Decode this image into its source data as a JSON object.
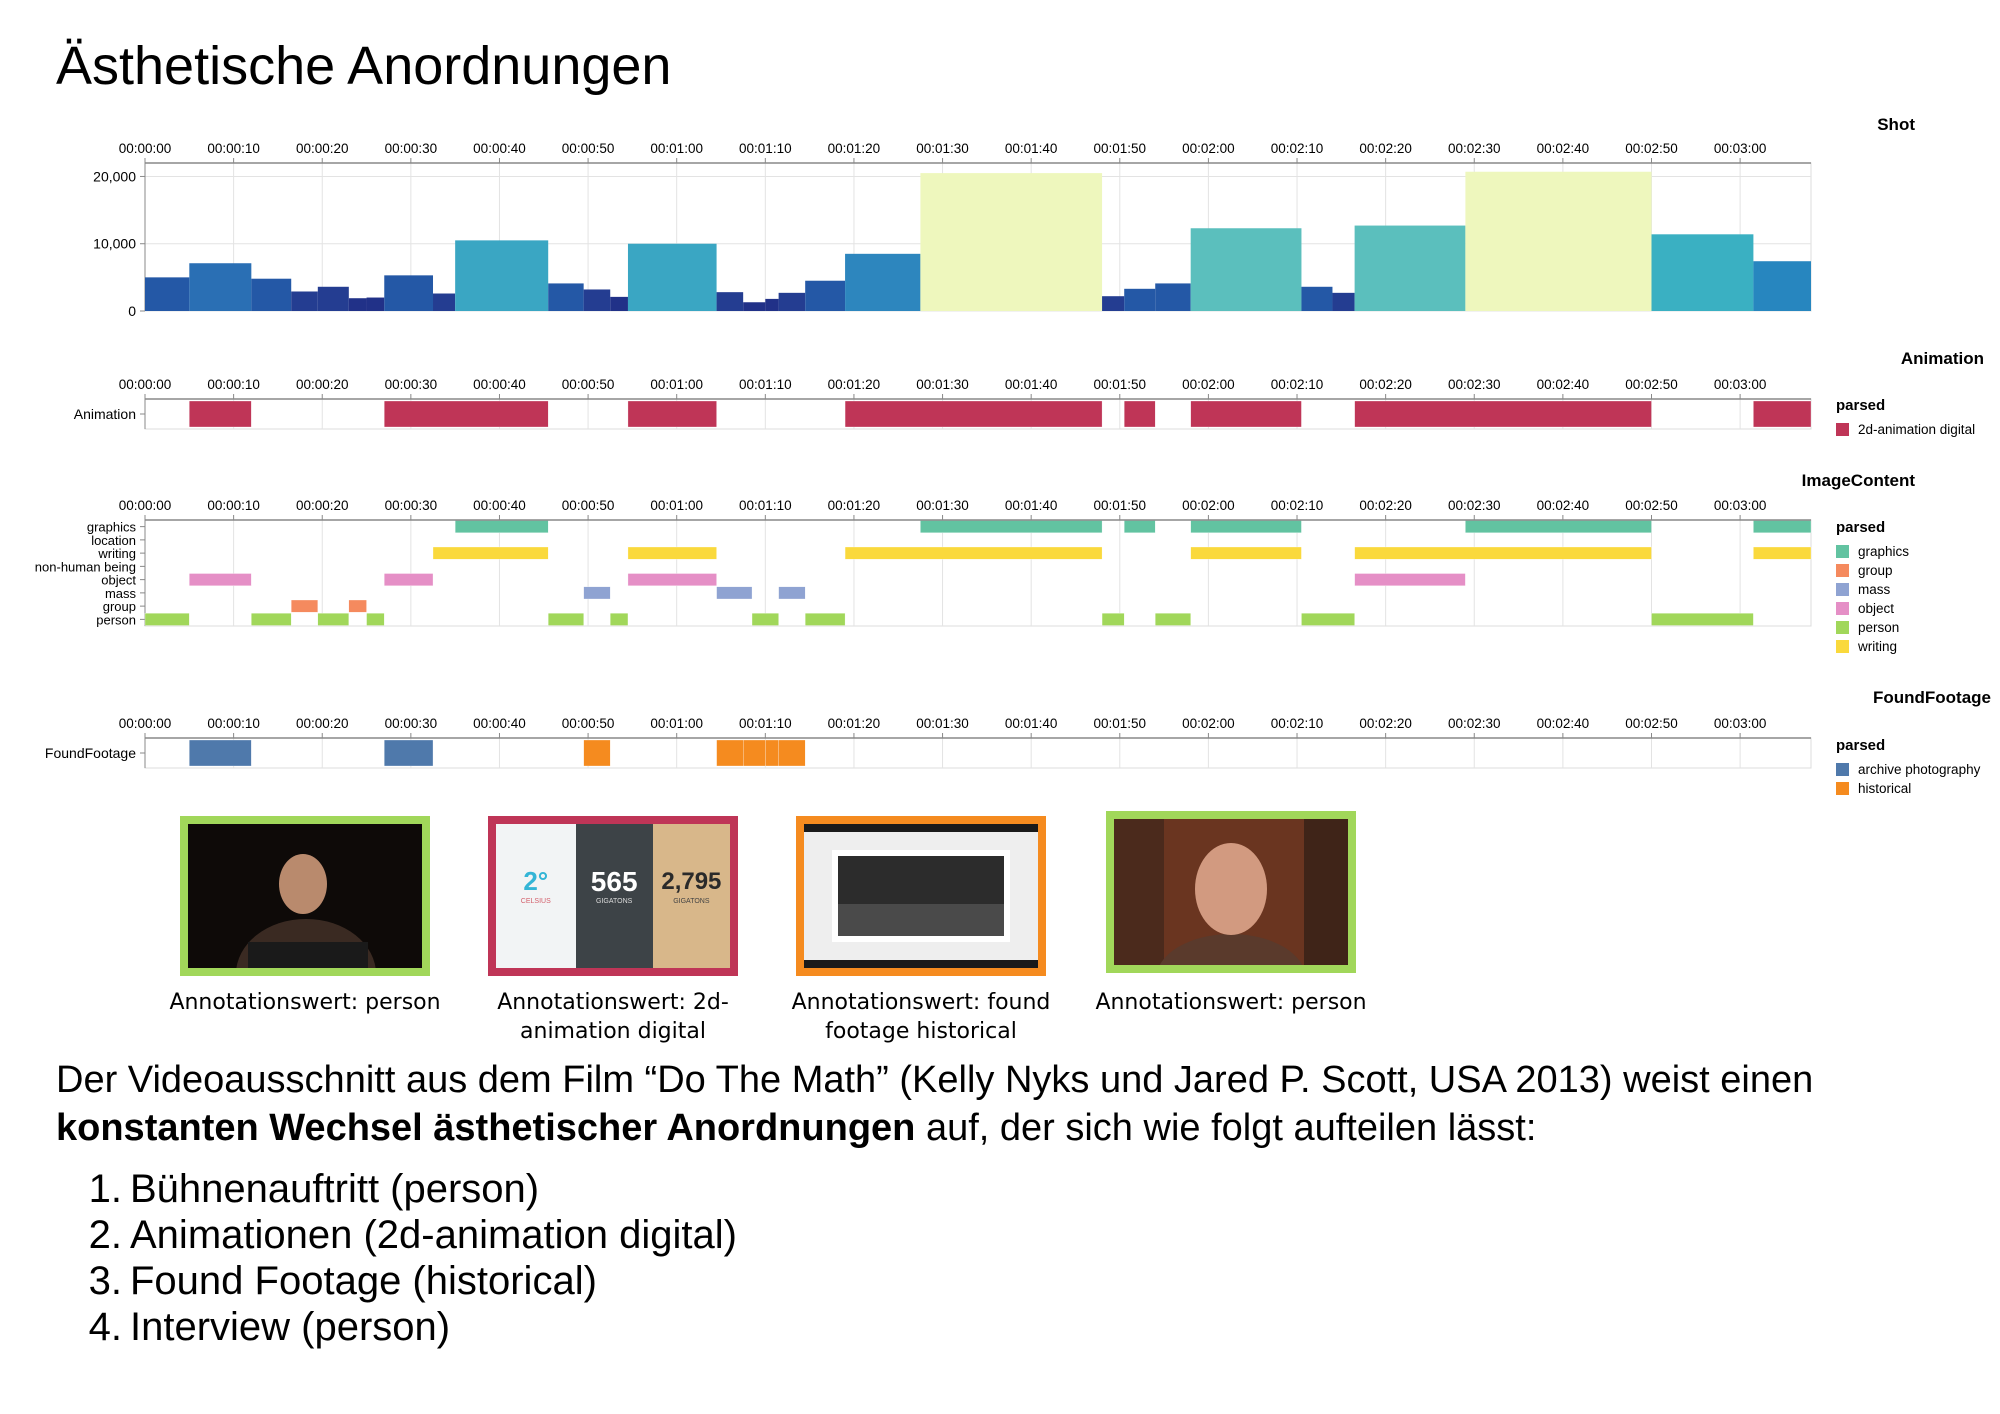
{
  "title": "Ästhetische Anordnungen",
  "colors": {
    "shot_light": "#eef7bd",
    "animation": "#bf3557",
    "graphics": "#62c3a1",
    "group": "#f58a5e",
    "mass": "#8fa3d2",
    "object": "#e58fc6",
    "person": "#a1d75a",
    "writing": "#fad93c",
    "archive": "#4f79ab",
    "historical": "#f58b1f"
  },
  "chart_data": [
    {
      "type": "bar",
      "title": "Shot",
      "x_unit": "seconds",
      "xlim": [
        0,
        188
      ],
      "ylim": [
        0,
        22000
      ],
      "y_ticks": [
        "0",
        "10,000",
        "20,000"
      ],
      "y_tick_values": [
        0,
        10000,
        20000
      ],
      "x_tick_labels": [
        "00:00:00",
        "00:00:10",
        "00:00:20",
        "00:00:30",
        "00:00:40",
        "00:00:50",
        "00:01:00",
        "00:01:10",
        "00:01:20",
        "00:01:30",
        "00:01:40",
        "00:01:50",
        "00:02:00",
        "00:02:10",
        "00:02:20",
        "00:02:30",
        "00:02:40",
        "00:02:50",
        "00:03:00"
      ],
      "x_tick_values": [
        0,
        10,
        20,
        30,
        40,
        50,
        60,
        70,
        80,
        90,
        100,
        110,
        120,
        130,
        140,
        150,
        160,
        170,
        180
      ],
      "shots": [
        {
          "start": 0,
          "end": 5,
          "value": 5000,
          "color": "#2458a6"
        },
        {
          "start": 5,
          "end": 12,
          "value": 7100,
          "color": "#2a6fb4"
        },
        {
          "start": 12,
          "end": 16.5,
          "value": 4800,
          "color": "#2458a6"
        },
        {
          "start": 16.5,
          "end": 19.5,
          "value": 2900,
          "color": "#243d91"
        },
        {
          "start": 19.5,
          "end": 23,
          "value": 3600,
          "color": "#243d91"
        },
        {
          "start": 23,
          "end": 25,
          "value": 1900,
          "color": "#213188"
        },
        {
          "start": 25,
          "end": 27,
          "value": 2000,
          "color": "#213188"
        },
        {
          "start": 27,
          "end": 32.5,
          "value": 5300,
          "color": "#2458a6"
        },
        {
          "start": 32.5,
          "end": 35,
          "value": 2600,
          "color": "#243d91"
        },
        {
          "start": 35,
          "end": 45.5,
          "value": 10500,
          "color": "#3aa6c3"
        },
        {
          "start": 45.5,
          "end": 49.5,
          "value": 4100,
          "color": "#2458a6"
        },
        {
          "start": 49.5,
          "end": 52.5,
          "value": 3200,
          "color": "#243d91"
        },
        {
          "start": 52.5,
          "end": 54.5,
          "value": 2100,
          "color": "#213188"
        },
        {
          "start": 54.5,
          "end": 64.5,
          "value": 10000,
          "color": "#3aa6c3"
        },
        {
          "start": 64.5,
          "end": 67.5,
          "value": 2800,
          "color": "#243d91"
        },
        {
          "start": 67.5,
          "end": 70,
          "value": 1300,
          "color": "#213188"
        },
        {
          "start": 70,
          "end": 71.5,
          "value": 1800,
          "color": "#213188"
        },
        {
          "start": 71.5,
          "end": 74.5,
          "value": 2700,
          "color": "#243d91"
        },
        {
          "start": 74.5,
          "end": 79,
          "value": 4500,
          "color": "#2458a6"
        },
        {
          "start": 79,
          "end": 87.5,
          "value": 8500,
          "color": "#2d86be"
        },
        {
          "start": 87.5,
          "end": 108,
          "value": 20500,
          "color": "#eef7bd"
        },
        {
          "start": 108,
          "end": 110.5,
          "value": 2200,
          "color": "#243d91"
        },
        {
          "start": 110.5,
          "end": 114,
          "value": 3300,
          "color": "#2458a6"
        },
        {
          "start": 114,
          "end": 118,
          "value": 4100,
          "color": "#2458a6"
        },
        {
          "start": 118,
          "end": 130.5,
          "value": 12300,
          "color": "#5bbfbd"
        },
        {
          "start": 130.5,
          "end": 134,
          "value": 3600,
          "color": "#2458a6"
        },
        {
          "start": 134,
          "end": 136.5,
          "value": 2700,
          "color": "#243d91"
        },
        {
          "start": 136.5,
          "end": 149,
          "value": 12700,
          "color": "#5bbfbd"
        },
        {
          "start": 149,
          "end": 170,
          "value": 20700,
          "color": "#eef7bd"
        },
        {
          "start": 170,
          "end": 181.5,
          "value": 11400,
          "color": "#3ab0c2"
        },
        {
          "start": 181.5,
          "end": 188,
          "value": 7400,
          "color": "#2786bf"
        }
      ]
    },
    {
      "type": "timeline",
      "title": "Animation",
      "rows": [
        "Animation"
      ],
      "legend_title": "parsed",
      "legend": [
        {
          "label": "2d-animation digital",
          "color": "#bf3557"
        }
      ],
      "segments": [
        {
          "row": "Animation",
          "start": 5,
          "end": 12,
          "color": "#bf3557"
        },
        {
          "row": "Animation",
          "start": 27,
          "end": 45.5,
          "color": "#bf3557"
        },
        {
          "row": "Animation",
          "start": 54.5,
          "end": 64.5,
          "color": "#bf3557"
        },
        {
          "row": "Animation",
          "start": 79,
          "end": 108,
          "color": "#bf3557"
        },
        {
          "row": "Animation",
          "start": 110.5,
          "end": 114,
          "color": "#bf3557"
        },
        {
          "row": "Animation",
          "start": 118,
          "end": 130.5,
          "color": "#bf3557"
        },
        {
          "row": "Animation",
          "start": 136.5,
          "end": 170,
          "color": "#bf3557"
        },
        {
          "row": "Animation",
          "start": 181.5,
          "end": 188,
          "color": "#bf3557"
        }
      ]
    },
    {
      "type": "timeline",
      "title": "ImageContent",
      "rows": [
        "graphics",
        "location",
        "writing",
        "non-human being",
        "object",
        "mass",
        "group",
        "person"
      ],
      "legend_title": "parsed",
      "legend": [
        {
          "label": "graphics",
          "color": "#62c3a1"
        },
        {
          "label": "group",
          "color": "#f58a5e"
        },
        {
          "label": "mass",
          "color": "#8fa3d2"
        },
        {
          "label": "object",
          "color": "#e58fc6"
        },
        {
          "label": "person",
          "color": "#a1d75a"
        },
        {
          "label": "writing",
          "color": "#fad93c"
        }
      ],
      "segments": [
        {
          "row": "graphics",
          "start": 35,
          "end": 45.5,
          "color": "#62c3a1"
        },
        {
          "row": "graphics",
          "start": 87.5,
          "end": 108,
          "color": "#62c3a1"
        },
        {
          "row": "graphics",
          "start": 110.5,
          "end": 114,
          "color": "#62c3a1"
        },
        {
          "row": "graphics",
          "start": 118,
          "end": 130.5,
          "color": "#62c3a1"
        },
        {
          "row": "graphics",
          "start": 149,
          "end": 170,
          "color": "#62c3a1"
        },
        {
          "row": "graphics",
          "start": 181.5,
          "end": 188,
          "color": "#62c3a1"
        },
        {
          "row": "writing",
          "start": 32.5,
          "end": 45.5,
          "color": "#fad93c"
        },
        {
          "row": "writing",
          "start": 54.5,
          "end": 64.5,
          "color": "#fad93c"
        },
        {
          "row": "writing",
          "start": 79,
          "end": 108,
          "color": "#fad93c"
        },
        {
          "row": "writing",
          "start": 118,
          "end": 130.5,
          "color": "#fad93c"
        },
        {
          "row": "writing",
          "start": 136.5,
          "end": 170,
          "color": "#fad93c"
        },
        {
          "row": "writing",
          "start": 181.5,
          "end": 188,
          "color": "#fad93c"
        },
        {
          "row": "object",
          "start": 5,
          "end": 12,
          "color": "#e58fc6"
        },
        {
          "row": "object",
          "start": 27,
          "end": 32.5,
          "color": "#e58fc6"
        },
        {
          "row": "object",
          "start": 54.5,
          "end": 64.5,
          "color": "#e58fc6"
        },
        {
          "row": "object",
          "start": 136.5,
          "end": 149,
          "color": "#e58fc6"
        },
        {
          "row": "mass",
          "start": 49.5,
          "end": 52.5,
          "color": "#8fa3d2"
        },
        {
          "row": "mass",
          "start": 64.5,
          "end": 68.5,
          "color": "#8fa3d2"
        },
        {
          "row": "mass",
          "start": 71.5,
          "end": 74.5,
          "color": "#8fa3d2"
        },
        {
          "row": "group",
          "start": 16.5,
          "end": 19.5,
          "color": "#f58a5e"
        },
        {
          "row": "group",
          "start": 23,
          "end": 25,
          "color": "#f58a5e"
        },
        {
          "row": "person",
          "start": 0,
          "end": 5,
          "color": "#a1d75a"
        },
        {
          "row": "person",
          "start": 12,
          "end": 16.5,
          "color": "#a1d75a"
        },
        {
          "row": "person",
          "start": 19.5,
          "end": 23,
          "color": "#a1d75a"
        },
        {
          "row": "person",
          "start": 25,
          "end": 27,
          "color": "#a1d75a"
        },
        {
          "row": "person",
          "start": 45.5,
          "end": 49.5,
          "color": "#a1d75a"
        },
        {
          "row": "person",
          "start": 52.5,
          "end": 54.5,
          "color": "#a1d75a"
        },
        {
          "row": "person",
          "start": 68.5,
          "end": 71.5,
          "color": "#a1d75a"
        },
        {
          "row": "person",
          "start": 74.5,
          "end": 79,
          "color": "#a1d75a"
        },
        {
          "row": "person",
          "start": 108,
          "end": 110.5,
          "color": "#a1d75a"
        },
        {
          "row": "person",
          "start": 114,
          "end": 118,
          "color": "#a1d75a"
        },
        {
          "row": "person",
          "start": 130.5,
          "end": 136.5,
          "color": "#a1d75a"
        },
        {
          "row": "person",
          "start": 170,
          "end": 181.5,
          "color": "#a1d75a"
        }
      ]
    },
    {
      "type": "timeline",
      "title": "FoundFootage",
      "rows": [
        "FoundFootage"
      ],
      "legend_title": "parsed",
      "legend": [
        {
          "label": "archive photography",
          "color": "#4f79ab"
        },
        {
          "label": "historical",
          "color": "#f58b1f"
        }
      ],
      "segments": [
        {
          "row": "FoundFootage",
          "start": 5,
          "end": 12,
          "color": "#4f79ab"
        },
        {
          "row": "FoundFootage",
          "start": 27,
          "end": 32.5,
          "color": "#4f79ab"
        },
        {
          "row": "FoundFootage",
          "start": 49.5,
          "end": 52.5,
          "color": "#f58b1f"
        },
        {
          "row": "FoundFootage",
          "start": 64.5,
          "end": 67.5,
          "color": "#f58b1f"
        },
        {
          "row": "FoundFootage",
          "start": 67.5,
          "end": 70,
          "color": "#f58b1f"
        },
        {
          "row": "FoundFootage",
          "start": 70,
          "end": 71.5,
          "color": "#f58b1f"
        },
        {
          "row": "FoundFootage",
          "start": 71.5,
          "end": 74.5,
          "color": "#f58b1f"
        }
      ]
    }
  ],
  "thumbnails": [
    {
      "caption": "Annotationswert: person",
      "border": "#a1d75a"
    },
    {
      "caption": "Annotationswert: 2d-animation digital",
      "border": "#bf3557",
      "numbers": [
        "2°",
        "565",
        "2,795"
      ],
      "subs": [
        "CELSIUS",
        "GIGATONS",
        "GIGATONS"
      ]
    },
    {
      "caption": "Annotationswert: found footage historical",
      "border": "#f58b1f"
    },
    {
      "caption": "Annotationswert: person",
      "border": "#a1d75a"
    }
  ],
  "paragraph": {
    "part1": "Der Videoausschnitt aus dem Film “Do The Math” (Kelly Nyks und Jared P. Scott, USA 2013) weist einen ",
    "bold": "konstanten Wechsel ästhetischer Anordnungen",
    "part2": " auf, der sich wie folgt aufteilen lässt:"
  },
  "steps": [
    {
      "num": "1.",
      "text": "Bühnenauftritt (person)"
    },
    {
      "num": "2.",
      "text": "Animationen (2d-animation digital)"
    },
    {
      "num": "3.",
      "text": "Found Footage (historical)"
    },
    {
      "num": "4.",
      "text": "Interview (person)"
    }
  ]
}
